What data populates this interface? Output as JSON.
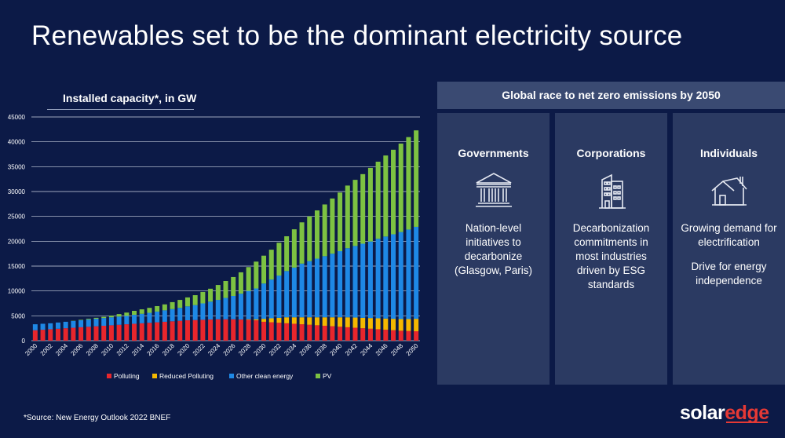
{
  "header": {
    "title": "Renewables set to be the dominant electricity source"
  },
  "chart_data": {
    "type": "bar",
    "stacked": true,
    "title": "Installed capacity*, in GW",
    "xlabel": "",
    "ylabel": "",
    "ylim": [
      0,
      45000
    ],
    "yticks": [
      0,
      5000,
      10000,
      15000,
      20000,
      25000,
      30000,
      35000,
      40000,
      45000
    ],
    "grid": true,
    "legend_position": "bottom",
    "categories": [
      "2000",
      "2001",
      "2002",
      "2003",
      "2004",
      "2005",
      "2006",
      "2007",
      "2008",
      "2009",
      "2010",
      "2011",
      "2012",
      "2013",
      "2014",
      "2015",
      "2016",
      "2017",
      "2018",
      "2019",
      "2020",
      "2021",
      "2022",
      "2023",
      "2024",
      "2025",
      "2026",
      "2027",
      "2028",
      "2029",
      "2030",
      "2031",
      "2032",
      "2033",
      "2034",
      "2035",
      "2036",
      "2037",
      "2038",
      "2039",
      "2040",
      "2041",
      "2042",
      "2043",
      "2044",
      "2045",
      "2046",
      "2047",
      "2048",
      "2049",
      "2050"
    ],
    "xtick_labels": [
      "2000",
      "2002",
      "2004",
      "2006",
      "2008",
      "2010",
      "2012",
      "2014",
      "2016",
      "2018",
      "2020",
      "2022",
      "2024",
      "2026",
      "2028",
      "2030",
      "2032",
      "2034",
      "2036",
      "2038",
      "2040",
      "2042",
      "2044",
      "2046",
      "2048",
      "2050"
    ],
    "series": [
      {
        "name": "Polluting",
        "color": "#e8262c",
        "values": [
          2100,
          2200,
          2300,
          2400,
          2500,
          2600,
          2700,
          2800,
          2900,
          3000,
          3100,
          3200,
          3300,
          3400,
          3500,
          3600,
          3700,
          3800,
          3900,
          4000,
          4100,
          4150,
          4200,
          4250,
          4300,
          4300,
          4300,
          4250,
          4200,
          4100,
          3800,
          3700,
          3600,
          3500,
          3400,
          3300,
          3200,
          3100,
          3000,
          2900,
          2800,
          2700,
          2600,
          2500,
          2400,
          2300,
          2200,
          2100,
          2000,
          1950,
          1900
        ]
      },
      {
        "name": "Reduced Polluting",
        "color": "#f5b800",
        "values": [
          0,
          0,
          0,
          0,
          0,
          0,
          0,
          0,
          0,
          0,
          0,
          0,
          0,
          0,
          0,
          0,
          0,
          0,
          0,
          0,
          0,
          0,
          0,
          0,
          0,
          0,
          0,
          0,
          100,
          200,
          600,
          800,
          1000,
          1200,
          1300,
          1400,
          1500,
          1600,
          1700,
          1800,
          1900,
          2000,
          2050,
          2100,
          2150,
          2200,
          2250,
          2300,
          2350,
          2400,
          2500
        ]
      },
      {
        "name": "Other clean energy",
        "color": "#1e88e5",
        "values": [
          1200,
          1200,
          1200,
          1250,
          1300,
          1350,
          1400,
          1450,
          1500,
          1550,
          1600,
          1650,
          1700,
          1800,
          1900,
          2000,
          2150,
          2300,
          2450,
          2600,
          2800,
          3000,
          3300,
          3600,
          3900,
          4300,
          4700,
          5200,
          5700,
          6200,
          7100,
          7800,
          8500,
          9300,
          10000,
          10800,
          11300,
          11800,
          12300,
          12800,
          13300,
          13900,
          14400,
          14900,
          15400,
          16000,
          16500,
          17000,
          17500,
          18000,
          18500
        ]
      },
      {
        "name": "PV",
        "color": "#7dc242",
        "values": [
          0,
          0,
          0,
          0,
          0,
          50,
          100,
          150,
          200,
          250,
          350,
          500,
          650,
          800,
          900,
          1000,
          1100,
          1200,
          1400,
          1600,
          1800,
          2000,
          2300,
          2600,
          3000,
          3400,
          3800,
          4300,
          4800,
          5400,
          5600,
          6000,
          6600,
          7000,
          7700,
          8300,
          9000,
          9700,
          10400,
          11100,
          11800,
          12600,
          13300,
          14000,
          14800,
          15500,
          16300,
          17000,
          17800,
          18600,
          19400
        ]
      }
    ]
  },
  "footnote": "*Source: New Energy Outlook 2022 BNEF",
  "logo": {
    "part1": "solar",
    "part2": "edge"
  },
  "panel": {
    "header": "Global race to net zero emissions by 2050",
    "columns": [
      {
        "title": "Governments",
        "icon": "government-building-icon",
        "text": "Nation-level initiatives to decarbonize (Glasgow, Paris)",
        "text2": ""
      },
      {
        "title": "Corporations",
        "icon": "office-building-icon",
        "text": "Decarbonization commitments in most industries driven by ESG standards",
        "text2": ""
      },
      {
        "title": "Individuals",
        "icon": "house-icon",
        "text": "Growing demand for electrification",
        "text2": "Drive for energy independence"
      }
    ]
  }
}
